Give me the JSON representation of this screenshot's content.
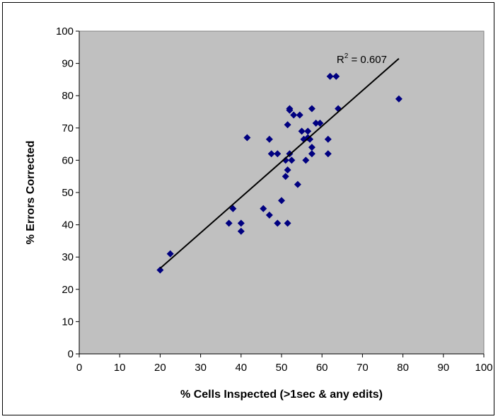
{
  "chart_data": {
    "type": "scatter",
    "title": "",
    "xlabel": "% Cells Inspected (>1sec & any edits)",
    "ylabel": "% Errors Corrected",
    "xlim": [
      0,
      100
    ],
    "ylim": [
      0,
      100
    ],
    "xticks": [
      0,
      10,
      20,
      30,
      40,
      50,
      60,
      70,
      80,
      90,
      100
    ],
    "yticks": [
      0,
      10,
      20,
      30,
      40,
      50,
      60,
      70,
      80,
      90,
      100
    ],
    "grid": false,
    "legend": "none",
    "marker": "diamond",
    "marker_color": "#000080",
    "plot_background": "#c0c0c0",
    "trendline": {
      "type": "linear",
      "x": [
        20,
        79
      ],
      "y": [
        26.5,
        91.5
      ],
      "color": "#000000",
      "label_prefix": "R",
      "label_exponent": "2",
      "label_suffix": " = 0.607"
    },
    "points": [
      [
        20,
        26
      ],
      [
        22.5,
        31
      ],
      [
        37,
        40.5
      ],
      [
        38,
        45
      ],
      [
        40,
        40.5
      ],
      [
        40,
        38
      ],
      [
        41.5,
        67
      ],
      [
        45.5,
        45
      ],
      [
        47,
        66.5
      ],
      [
        47.5,
        62
      ],
      [
        47,
        43
      ],
      [
        49,
        62
      ],
      [
        49,
        40.5
      ],
      [
        50,
        47.5
      ],
      [
        51,
        55
      ],
      [
        51,
        60
      ],
      [
        51.5,
        71
      ],
      [
        51.5,
        57
      ],
      [
        51.5,
        40.5
      ],
      [
        52,
        76
      ],
      [
        52,
        75.5
      ],
      [
        52,
        62
      ],
      [
        52.5,
        60
      ],
      [
        53,
        74
      ],
      [
        54,
        52.5
      ],
      [
        54.5,
        74
      ],
      [
        55,
        69
      ],
      [
        55.5,
        66.5
      ],
      [
        56,
        60
      ],
      [
        56.5,
        69
      ],
      [
        56.5,
        67
      ],
      [
        57,
        66.5
      ],
      [
        57.5,
        76
      ],
      [
        57.5,
        64
      ],
      [
        57.5,
        62
      ],
      [
        58.5,
        71.5
      ],
      [
        59.5,
        71.5
      ],
      [
        61.5,
        66.5
      ],
      [
        61.5,
        62
      ],
      [
        62,
        86
      ],
      [
        63.5,
        86
      ],
      [
        64,
        76
      ],
      [
        79,
        79
      ]
    ]
  }
}
